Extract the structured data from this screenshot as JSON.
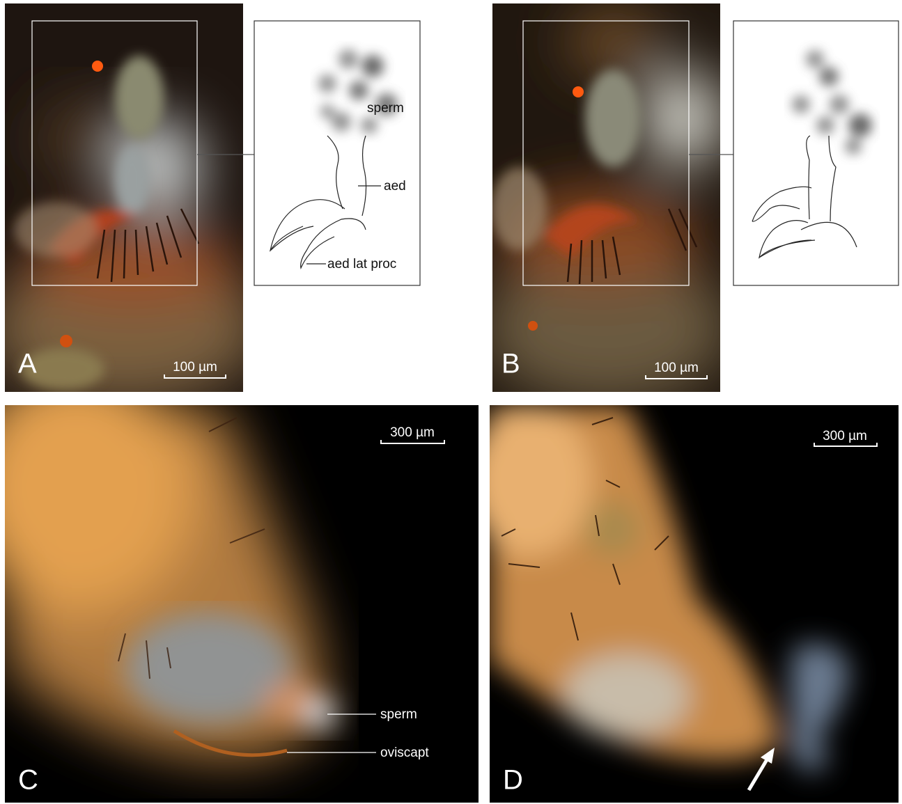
{
  "panels": [
    {
      "letter": "A",
      "scale_bar": "100 µm",
      "labels": [
        "sperm",
        "aed",
        "aed lat proc"
      ]
    },
    {
      "letter": "B",
      "scale_bar": "100 µm"
    },
    {
      "letter": "C",
      "scale_bar": "300 µm",
      "labels": [
        "sperm",
        "oviscapt"
      ]
    },
    {
      "letter": "D",
      "scale_bar": "300 µm"
    }
  ]
}
